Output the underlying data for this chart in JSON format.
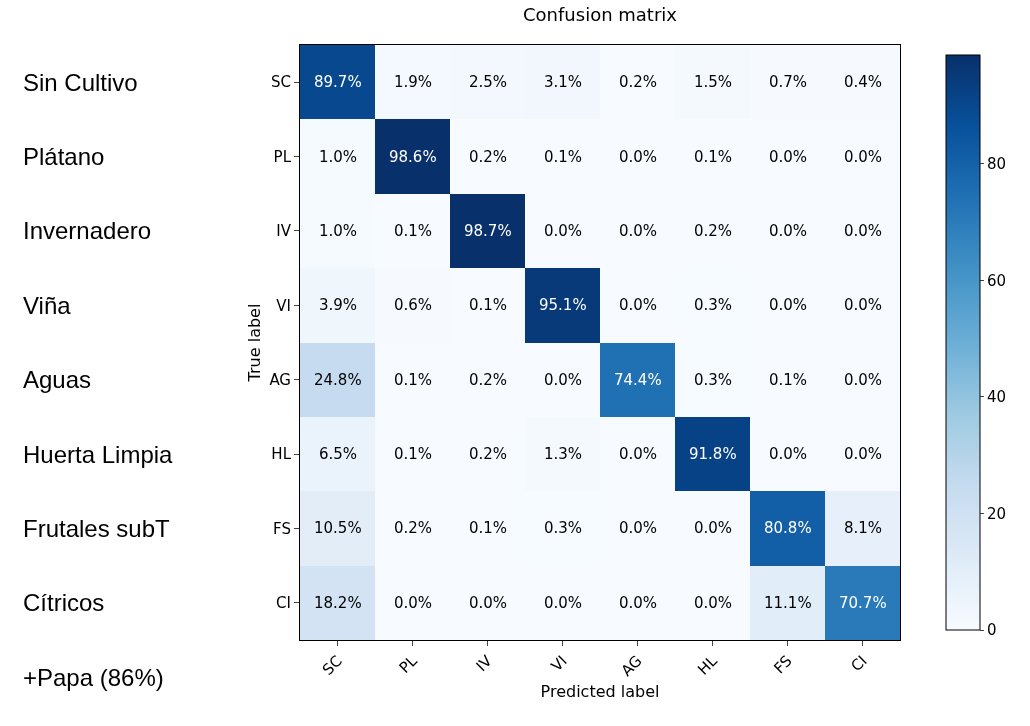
{
  "chart_data": {
    "type": "heatmap",
    "title": "Confusion matrix",
    "xlabel": "Predicted label",
    "ylabel": "True label",
    "categories": [
      "SC",
      "PL",
      "IV",
      "VI",
      "AG",
      "HL",
      "FS",
      "CI"
    ],
    "y_categories": [
      "SC",
      "PL",
      "IV",
      "VI",
      "AG",
      "HL",
      "FS",
      "CI"
    ],
    "y2_categories": [
      "Sin Cultivo",
      "Plátano",
      "Invernadero",
      "Viña",
      "Aguas",
      "Huerta Limpia",
      "Frutales subT",
      "Cítricos"
    ],
    "cells": [
      [
        89.7,
        1.9,
        2.5,
        3.1,
        0.2,
        1.5,
        0.7,
        0.4
      ],
      [
        1.0,
        98.6,
        0.2,
        0.1,
        0.0,
        0.1,
        0.0,
        0.0
      ],
      [
        1.0,
        0.1,
        98.7,
        0.0,
        0.0,
        0.2,
        0.0,
        0.0
      ],
      [
        3.9,
        0.6,
        0.1,
        95.1,
        0.0,
        0.3,
        0.0,
        0.0
      ],
      [
        24.8,
        0.1,
        0.2,
        0.0,
        74.4,
        0.3,
        0.1,
        0.0
      ],
      [
        6.5,
        0.1,
        0.2,
        1.3,
        0.0,
        91.8,
        0.0,
        0.0
      ],
      [
        10.5,
        0.2,
        0.1,
        0.3,
        0.0,
        0.0,
        80.8,
        8.1
      ],
      [
        18.2,
        0.0,
        0.0,
        0.0,
        0.0,
        0.0,
        11.1,
        70.7
      ]
    ],
    "cell_labels": [
      [
        "89.7%",
        "1.9%",
        "2.5%",
        "3.1%",
        "0.2%",
        "1.5%",
        "0.7%",
        "0.4%"
      ],
      [
        "1.0%",
        "98.6%",
        "0.2%",
        "0.1%",
        "0.0%",
        "0.1%",
        "0.0%",
        "0.0%"
      ],
      [
        "1.0%",
        "0.1%",
        "98.7%",
        "0.0%",
        "0.0%",
        "0.2%",
        "0.0%",
        "0.0%"
      ],
      [
        "3.9%",
        "0.6%",
        "0.1%",
        "95.1%",
        "0.0%",
        "0.3%",
        "0.0%",
        "0.0%"
      ],
      [
        "24.8%",
        "0.1%",
        "0.2%",
        "0.0%",
        "74.4%",
        "0.3%",
        "0.1%",
        "0.0%"
      ],
      [
        "6.5%",
        "0.1%",
        "0.2%",
        "1.3%",
        "0.0%",
        "91.8%",
        "0.0%",
        "0.0%"
      ],
      [
        "10.5%",
        "0.2%",
        "0.1%",
        "0.3%",
        "0.0%",
        "0.0%",
        "80.8%",
        "8.1%"
      ],
      [
        "18.2%",
        "0.0%",
        "0.0%",
        "0.0%",
        "0.0%",
        "0.0%",
        "11.1%",
        "70.7%"
      ]
    ],
    "clim": [
      0,
      98.7
    ],
    "cticks": [
      0,
      20,
      40,
      60,
      80
    ],
    "annotations": [
      "+Papa (86%)"
    ]
  }
}
